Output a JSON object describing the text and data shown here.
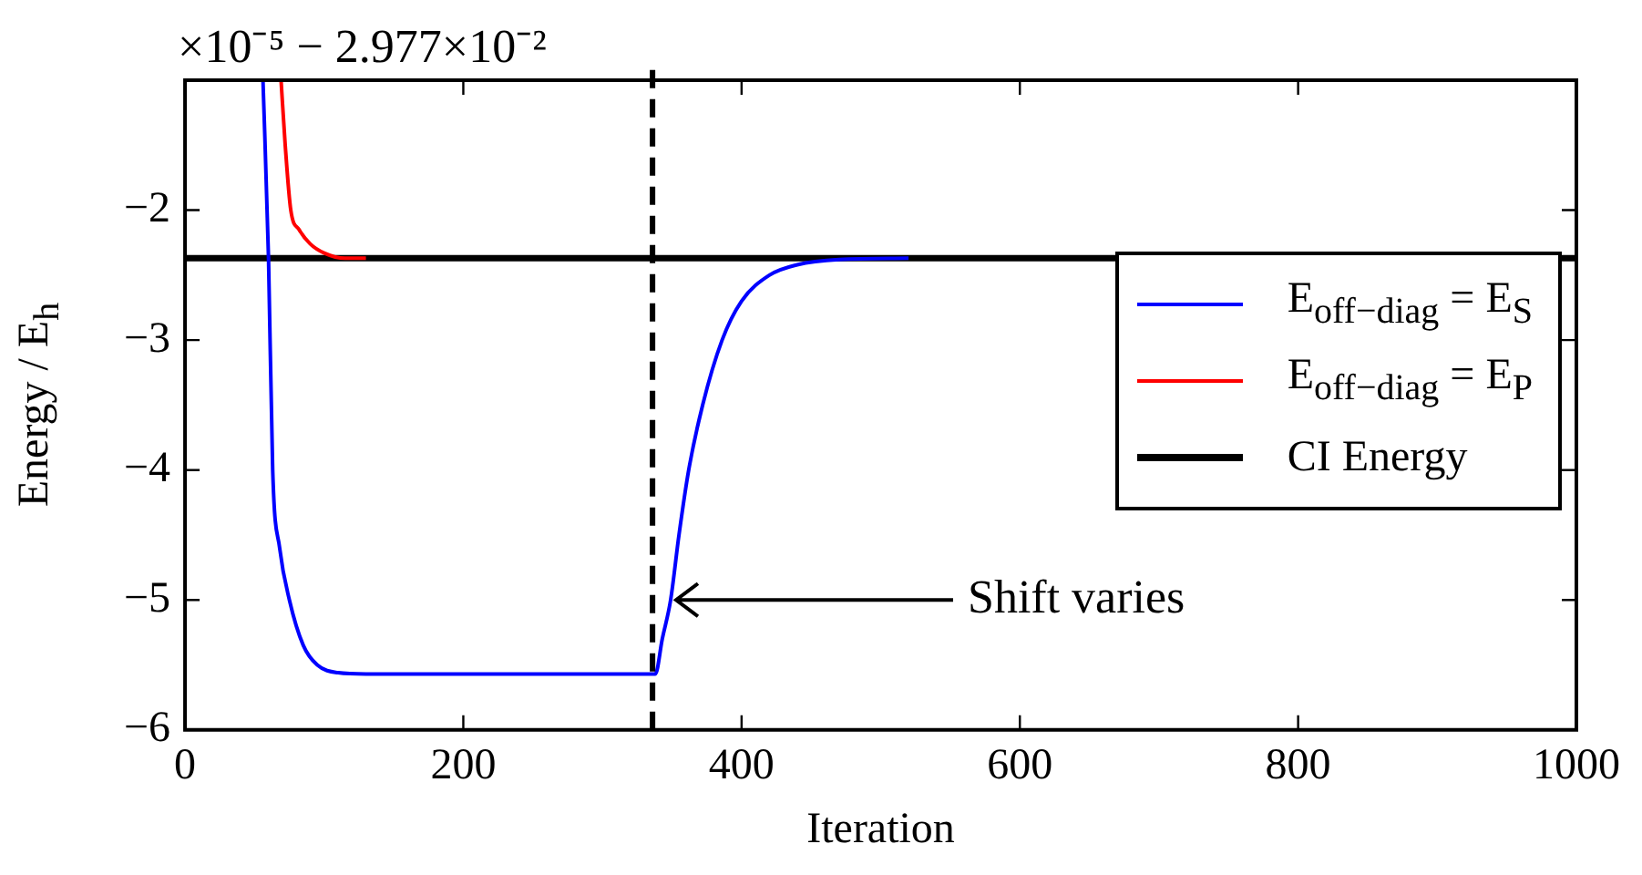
{
  "chart_data": {
    "type": "line",
    "xlabel": "Iteration",
    "ylabel": "Energy / E$_{h}$",
    "xlim": [
      0,
      1000
    ],
    "xticks": [
      0,
      200,
      400,
      600,
      800,
      1000
    ],
    "ylim": [
      -6,
      -1
    ],
    "yticks": [
      -6,
      -5,
      -4,
      -3,
      -2
    ],
    "grid": false,
    "legend": "right",
    "marker": "none",
    "line_style": "solid",
    "series": [
      {
        "name": "E$_{off−diag}$ = E$_{S}$",
        "color": "#0000ff",
        "x": [
          56,
          60,
          63,
          68,
          75,
          85,
          95,
          110,
          130,
          200,
          300,
          338,
          343,
          349,
          355,
          362,
          372,
          386,
          400,
          420,
          440,
          470,
          520
        ],
        "values": [
          -1.0,
          -2.37,
          -4.0,
          -4.6,
          -5.0,
          -5.35,
          -5.5,
          -5.56,
          -5.57,
          -5.57,
          -5.57,
          -5.57,
          -5.3,
          -5.0,
          -4.5,
          -4.0,
          -3.5,
          -3.0,
          -2.7,
          -2.5,
          -2.42,
          -2.38,
          -2.37
        ]
      },
      {
        "name": "E$_{off−diag}$ = E$_{P}$",
        "color": "#ff0000",
        "x": [
          69,
          72,
          76,
          82,
          90,
          100,
          115,
          130
        ],
        "values": [
          -1.0,
          -1.5,
          -2.0,
          -2.15,
          -2.26,
          -2.33,
          -2.37,
          -2.37
        ]
      },
      {
        "name": "CI Energy",
        "color": "#000000",
        "x": [
          0,
          1000
        ],
        "values": [
          -2.37,
          -2.37
        ]
      }
    ],
    "ref_lines": [
      {
        "axis": "x",
        "value": 336,
        "color": "#000000",
        "line_style": "dashed"
      }
    ],
    "annotations": [
      "×10⁻⁵ − 2.977×10⁻²",
      {
        "text": "Shift varies",
        "x": 349,
        "y": -5
      }
    ]
  }
}
